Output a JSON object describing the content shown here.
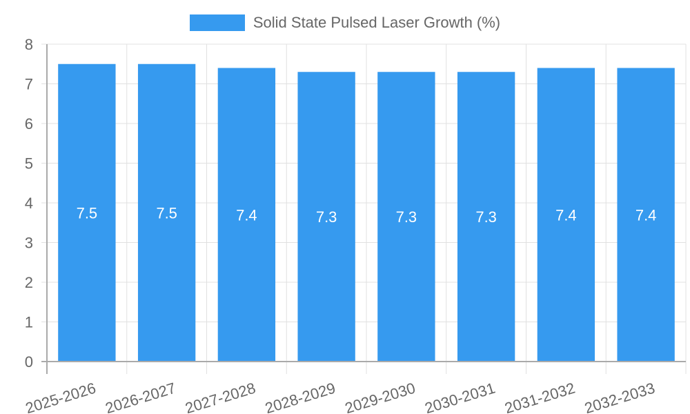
{
  "chart_data": {
    "type": "bar",
    "title": "",
    "legend": [
      {
        "label": "Solid State Pulsed Laser Growth (%)",
        "color": "#369aef"
      }
    ],
    "categories": [
      "2025-2026",
      "2026-2027",
      "2027-2028",
      "2028-2029",
      "2029-2030",
      "2030-2031",
      "2031-2032",
      "2032-2033"
    ],
    "series": [
      {
        "name": "Solid State Pulsed Laser Growth (%)",
        "values": [
          7.5,
          7.5,
          7.4,
          7.3,
          7.3,
          7.3,
          7.4,
          7.4
        ]
      }
    ],
    "xlabel": "",
    "ylabel": "",
    "ylim": [
      0,
      8
    ],
    "yticks": [
      0,
      1,
      2,
      3,
      4,
      5,
      6,
      7,
      8
    ],
    "grid": true,
    "legend_position": "top",
    "data_labels": true
  },
  "legend": {
    "label": "Solid State Pulsed Laser Growth (%)"
  }
}
